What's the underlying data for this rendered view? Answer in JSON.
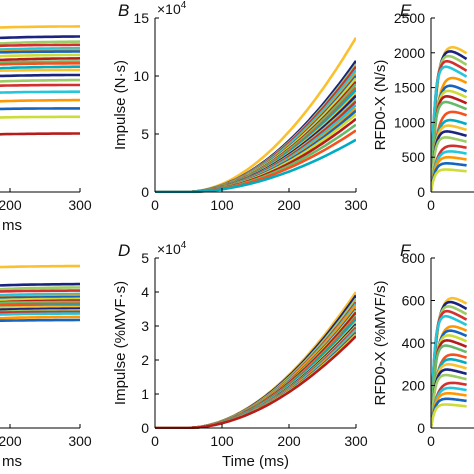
{
  "chart_data": [
    {
      "panel": "",
      "type": "line",
      "xlabel": "ms",
      "ylabel": "",
      "x_ticks": [
        "200",
        "300"
      ],
      "y_ticks": [],
      "xlim": [
        100,
        300
      ],
      "ylim": [
        0,
        1
      ],
      "palette": [
        "#1a237e",
        "#1565c0",
        "#00acc1",
        "#26c6da",
        "#66bb6a",
        "#9ccc65",
        "#cddc39",
        "#fbc02d",
        "#ff9800",
        "#f4511e",
        "#d32f2f",
        "#b71c1c"
      ],
      "series_final_levels": [
        0.99,
        0.93,
        0.9,
        0.88,
        0.86,
        0.85,
        0.84,
        0.82,
        0.8,
        0.78,
        0.77,
        0.75,
        0.73,
        0.7,
        0.67,
        0.64,
        0.6,
        0.55,
        0.5,
        0.45,
        0.35
      ]
    },
    {
      "panel": "B",
      "type": "line",
      "xlabel": "",
      "ylabel": "Impulse (N·s)",
      "y_multiplier": "×10",
      "y_multiplier_exp": "4",
      "x_ticks": [
        "0",
        "100",
        "200",
        "300"
      ],
      "y_ticks": [
        "0",
        "5",
        "10",
        "15"
      ],
      "xlim": [
        0,
        300
      ],
      "ylim": [
        0,
        15
      ],
      "palette": [
        "#1a237e",
        "#1565c0",
        "#00acc1",
        "#26c6da",
        "#66bb6a",
        "#9ccc65",
        "#cddc39",
        "#fbc02d",
        "#ff9800",
        "#f4511e",
        "#d32f2f",
        "#b71c1c"
      ],
      "series_final_values": [
        13.3,
        11.3,
        11.0,
        10.8,
        10.5,
        10.2,
        10.0,
        9.8,
        9.5,
        9.3,
        9.0,
        8.8,
        8.5,
        8.3,
        8.0,
        7.8,
        7.5,
        7.2,
        7.0,
        6.7,
        6.3,
        5.8,
        5.3,
        4.5
      ]
    },
    {
      "panel": "E",
      "type": "line",
      "xlabel": "",
      "ylabel": "RFD0-X (N/s)",
      "x_ticks": [
        "0"
      ],
      "y_ticks": [
        "0",
        "500",
        "1000",
        "1500",
        "2000",
        "2500"
      ],
      "xlim": [
        0,
        300
      ],
      "ylim": [
        0,
        2500
      ],
      "palette": [
        "#1a237e",
        "#1565c0",
        "#00acc1",
        "#26c6da",
        "#66bb6a",
        "#9ccc65",
        "#cddc39",
        "#fbc02d",
        "#ff9800",
        "#f4511e",
        "#d32f2f",
        "#b71c1c"
      ],
      "series_peak_values": [
        2350,
        2250,
        2150,
        2050,
        1950,
        1850,
        1700,
        1600,
        1500,
        1400,
        1300,
        1150,
        1050,
        950,
        850,
        750,
        650,
        550,
        450,
        350
      ]
    },
    {
      "panel": "",
      "type": "line",
      "xlabel": "ms",
      "ylabel": "",
      "x_ticks": [
        "200",
        "300"
      ],
      "y_ticks": [],
      "xlim": [
        100,
        300
      ],
      "ylim": [
        0,
        1
      ],
      "palette": [
        "#1a237e",
        "#1565c0",
        "#00acc1",
        "#26c6da",
        "#66bb6a",
        "#9ccc65",
        "#cddc39",
        "#fbc02d",
        "#ff9800",
        "#f4511e",
        "#d32f2f",
        "#b71c1c"
      ],
      "series_final_levels": [
        0.99,
        0.88,
        0.86,
        0.84,
        0.82,
        0.81,
        0.8,
        0.79,
        0.78,
        0.77,
        0.76,
        0.75,
        0.74,
        0.73,
        0.72,
        0.71,
        0.7,
        0.68,
        0.66
      ]
    },
    {
      "panel": "D",
      "type": "line",
      "xlabel": "Time (ms)",
      "ylabel": "Impulse (%MVF·s)",
      "y_multiplier": "×10",
      "y_multiplier_exp": "4",
      "x_ticks": [
        "0",
        "100",
        "200",
        "300"
      ],
      "y_ticks": [
        "0",
        "1",
        "2",
        "3",
        "4",
        "5"
      ],
      "xlim": [
        0,
        300
      ],
      "ylim": [
        0,
        5
      ],
      "palette": [
        "#1a237e",
        "#1565c0",
        "#00acc1",
        "#26c6da",
        "#66bb6a",
        "#9ccc65",
        "#cddc39",
        "#fbc02d",
        "#ff9800",
        "#f4511e",
        "#d32f2f",
        "#b71c1c"
      ],
      "series_final_values": [
        4.0,
        3.9,
        3.8,
        3.7,
        3.65,
        3.6,
        3.5,
        3.45,
        3.4,
        3.3,
        3.25,
        3.2,
        3.1,
        3.05,
        3.0,
        2.95,
        2.9,
        2.85,
        2.8,
        2.75,
        2.7
      ]
    },
    {
      "panel": "F",
      "type": "line",
      "xlabel": "",
      "ylabel": "RFD0-X (%MVF/s)",
      "x_ticks": [
        "0"
      ],
      "y_ticks": [
        "0",
        "200",
        "400",
        "600",
        "800"
      ],
      "xlim": [
        0,
        300
      ],
      "ylim": [
        0,
        800
      ],
      "palette": [
        "#1a237e",
        "#1565c0",
        "#00acc1",
        "#26c6da",
        "#66bb6a",
        "#9ccc65",
        "#cddc39",
        "#fbc02d",
        "#ff9800",
        "#f4511e",
        "#d32f2f",
        "#b71c1c"
      ],
      "series_peak_values": [
        690,
        660,
        630,
        600,
        570,
        540,
        510,
        480,
        450,
        420,
        390,
        360,
        330,
        300,
        270,
        240,
        210,
        180,
        150,
        120
      ]
    }
  ]
}
